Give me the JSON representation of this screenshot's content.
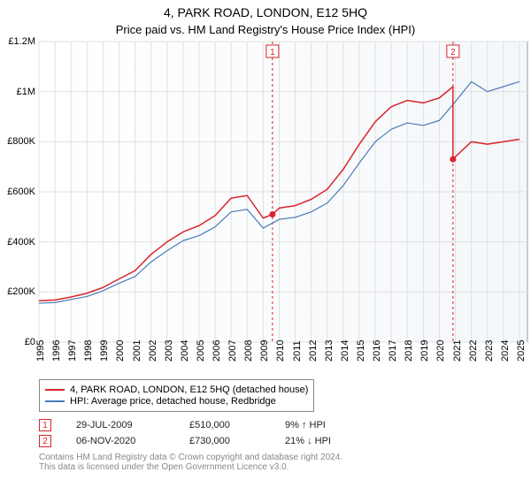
{
  "title": "4, PARK ROAD, LONDON, E12 5HQ",
  "subtitle": "Price paid vs. HM Land Registry's House Price Index (HPI)",
  "chart": {
    "type": "line",
    "background_color": "#ffffff",
    "plot_background_gradient": [
      "#ffffff",
      "#f4f7fa"
    ],
    "grid_color": "#e0e0e0",
    "y_axis": {
      "min": 0,
      "max": 1200000,
      "step": 200000,
      "ticks": [
        0,
        200000,
        400000,
        600000,
        800000,
        1000000,
        1200000
      ],
      "labels": [
        "£0",
        "£200K",
        "£400K",
        "£600K",
        "£800K",
        "£1M",
        "£1.2M"
      ],
      "label_fontsize": 11
    },
    "x_axis": {
      "min": 1995,
      "max": 2025.5,
      "ticks": [
        1995,
        1996,
        1997,
        1998,
        1999,
        2000,
        2001,
        2002,
        2003,
        2004,
        2005,
        2006,
        2007,
        2008,
        2009,
        2010,
        2011,
        2012,
        2013,
        2014,
        2015,
        2016,
        2017,
        2018,
        2019,
        2020,
        2021,
        2022,
        2023,
        2024,
        2025
      ],
      "label_fontsize": 11,
      "label_rotation": -90
    },
    "series": [
      {
        "name": "4, PARK ROAD, LONDON, E12 5HQ (detached house)",
        "color": "#d9242b",
        "line_width": 1.5,
        "data": [
          [
            1995,
            165000
          ],
          [
            1996,
            168000
          ],
          [
            1997,
            180000
          ],
          [
            1998,
            195000
          ],
          [
            1999,
            218000
          ],
          [
            2000,
            252000
          ],
          [
            2001,
            285000
          ],
          [
            2002,
            350000
          ],
          [
            2003,
            400000
          ],
          [
            2004,
            440000
          ],
          [
            2005,
            465000
          ],
          [
            2006,
            505000
          ],
          [
            2007,
            575000
          ],
          [
            2008,
            585000
          ],
          [
            2009,
            495000
          ],
          [
            2009.58,
            510000
          ],
          [
            2010,
            535000
          ],
          [
            2011,
            545000
          ],
          [
            2012,
            570000
          ],
          [
            2013,
            610000
          ],
          [
            2014,
            690000
          ],
          [
            2015,
            790000
          ],
          [
            2016,
            880000
          ],
          [
            2017,
            940000
          ],
          [
            2018,
            965000
          ],
          [
            2019,
            955000
          ],
          [
            2020,
            975000
          ],
          [
            2020.85,
            1020000
          ],
          [
            2020.85,
            730000
          ],
          [
            2021,
            740000
          ],
          [
            2022,
            800000
          ],
          [
            2023,
            790000
          ],
          [
            2024,
            800000
          ],
          [
            2025,
            810000
          ]
        ]
      },
      {
        "name": "HPI: Average price, detached house, Redbridge",
        "color": "#4a7ab8",
        "line_width": 1.2,
        "data": [
          [
            1995,
            155000
          ],
          [
            1996,
            158000
          ],
          [
            1997,
            170000
          ],
          [
            1998,
            182000
          ],
          [
            1999,
            205000
          ],
          [
            2000,
            235000
          ],
          [
            2001,
            262000
          ],
          [
            2002,
            320000
          ],
          [
            2003,
            365000
          ],
          [
            2004,
            405000
          ],
          [
            2005,
            425000
          ],
          [
            2006,
            460000
          ],
          [
            2007,
            520000
          ],
          [
            2008,
            530000
          ],
          [
            2009,
            455000
          ],
          [
            2010,
            490000
          ],
          [
            2011,
            498000
          ],
          [
            2012,
            520000
          ],
          [
            2013,
            555000
          ],
          [
            2014,
            625000
          ],
          [
            2015,
            715000
          ],
          [
            2016,
            800000
          ],
          [
            2017,
            850000
          ],
          [
            2018,
            875000
          ],
          [
            2019,
            865000
          ],
          [
            2020,
            885000
          ],
          [
            2021,
            960000
          ],
          [
            2022,
            1040000
          ],
          [
            2023,
            1000000
          ],
          [
            2024,
            1020000
          ],
          [
            2025,
            1040000
          ]
        ]
      }
    ],
    "markers": [
      {
        "id": "1",
        "x": 2009.58,
        "y": 510000,
        "color": "#d9242b",
        "vline_color": "#d9242b",
        "vline_dash": "3,3"
      },
      {
        "id": "2",
        "x": 2020.85,
        "y": 730000,
        "color": "#d9242b",
        "vline_color": "#d9242b",
        "vline_dash": "3,3"
      }
    ]
  },
  "legend": {
    "items": [
      {
        "color": "#d9242b",
        "label": "4, PARK ROAD, LONDON, E12 5HQ (detached house)"
      },
      {
        "color": "#4a7ab8",
        "label": "HPI: Average price, detached house, Redbridge"
      }
    ],
    "fontsize": 11,
    "border_color": "#888888"
  },
  "sales": [
    {
      "marker": "1",
      "marker_color": "#d9242b",
      "date": "29-JUL-2009",
      "price": "£510,000",
      "diff": "9% ↑ HPI",
      "arrow": "↑"
    },
    {
      "marker": "2",
      "marker_color": "#d9242b",
      "date": "06-NOV-2020",
      "price": "£730,000",
      "diff": "21% ↓ HPI",
      "arrow": "↓"
    }
  ],
  "footer": {
    "line1": "Contains HM Land Registry data © Crown copyright and database right 2024.",
    "line2": "This data is licensed under the Open Government Licence v3.0."
  }
}
